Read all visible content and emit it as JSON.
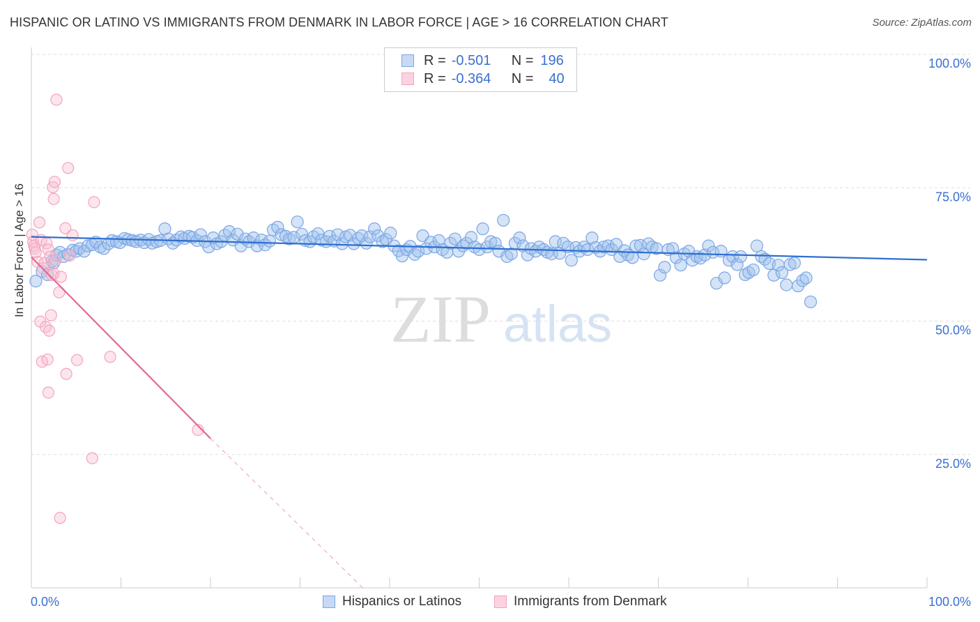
{
  "title": "HISPANIC OR LATINO VS IMMIGRANTS FROM DENMARK IN LABOR FORCE | AGE > 16 CORRELATION CHART",
  "source": "Source: ZipAtlas.com",
  "watermark": {
    "zip": "ZIP",
    "atlas": "atlas"
  },
  "legend": {
    "series1": {
      "r_label": "R =",
      "r_value": "-0.501",
      "n_label": "N =",
      "n_value": "196"
    },
    "series2": {
      "r_label": "R =",
      "r_value": "-0.364",
      "n_label": "N =",
      "n_value": "40"
    }
  },
  "colors": {
    "blue": "#7aa6e6",
    "blue_line": "#2f6fd0",
    "pink": "#f4a3bd",
    "pink_line": "#e06a95",
    "tick_text": "#3a6fd0"
  },
  "chart_data": {
    "type": "scatter",
    "title": "HISPANIC OR LATINO VS IMMIGRANTS FROM DENMARK IN LABOR FORCE | AGE > 16 CORRELATION CHART",
    "xlabel": "",
    "ylabel": "In Labor Force | Age > 16",
    "xlim": [
      0,
      100
    ],
    "ylim": [
      0,
      100
    ],
    "x_ticks": [
      "0.0%",
      "100.0%"
    ],
    "y_ticks": [
      {
        "v": 25,
        "label": "25.0%"
      },
      {
        "v": 50,
        "label": "50.0%"
      },
      {
        "v": 75,
        "label": "75.0%"
      },
      {
        "v": 100,
        "label": "100.0%"
      }
    ],
    "grid": true,
    "legend_position": "bottom-center",
    "series": [
      {
        "name": "Hispanics or Latinos",
        "color": "#7aa6e6",
        "trend": {
          "x0": 0,
          "y0": 65.8,
          "x1": 100,
          "y1": 61.5
        },
        "points": [
          [
            0.5,
            57.5
          ],
          [
            1.2,
            59.3
          ],
          [
            1.8,
            58.7
          ],
          [
            2.3,
            61.2
          ],
          [
            2.5,
            60.9
          ],
          [
            2.8,
            62.4
          ],
          [
            3.2,
            62.9
          ],
          [
            3.6,
            62.1
          ],
          [
            4.1,
            62.5
          ],
          [
            4.6,
            63.3
          ],
          [
            5.0,
            63.1
          ],
          [
            5.4,
            63.6
          ],
          [
            5.9,
            63.1
          ],
          [
            6.3,
            64.1
          ],
          [
            6.8,
            64.3
          ],
          [
            7.2,
            64.8
          ],
          [
            7.7,
            63.9
          ],
          [
            8.1,
            63.6
          ],
          [
            8.6,
            64.5
          ],
          [
            9.0,
            65.1
          ],
          [
            9.5,
            64.9
          ],
          [
            9.9,
            64.7
          ],
          [
            10.4,
            65.5
          ],
          [
            10.8,
            65.3
          ],
          [
            11.3,
            65.1
          ],
          [
            11.7,
            64.9
          ],
          [
            12.2,
            65.2
          ],
          [
            12.6,
            64.7
          ],
          [
            13.1,
            65.3
          ],
          [
            13.5,
            64.6
          ],
          [
            14.0,
            64.9
          ],
          [
            14.4,
            65.1
          ],
          [
            14.9,
            67.3
          ],
          [
            15.3,
            65.4
          ],
          [
            15.8,
            64.6
          ],
          [
            16.2,
            65.2
          ],
          [
            16.7,
            65.8
          ],
          [
            17.1,
            65.5
          ],
          [
            17.6,
            65.9
          ],
          [
            18.0,
            65.7
          ],
          [
            18.5,
            65.1
          ],
          [
            18.9,
            66.2
          ],
          [
            19.4,
            64.9
          ],
          [
            19.8,
            63.9
          ],
          [
            20.3,
            65.6
          ],
          [
            20.7,
            64.5
          ],
          [
            21.2,
            64.9
          ],
          [
            21.6,
            66.1
          ],
          [
            22.1,
            66.8
          ],
          [
            22.5,
            65.2
          ],
          [
            23.0,
            66.3
          ],
          [
            23.4,
            64.1
          ],
          [
            23.9,
            65.4
          ],
          [
            24.3,
            64.9
          ],
          [
            24.8,
            65.6
          ],
          [
            25.2,
            64.1
          ],
          [
            25.7,
            65.2
          ],
          [
            26.1,
            64.3
          ],
          [
            26.6,
            65.0
          ],
          [
            27.0,
            67.1
          ],
          [
            27.5,
            67.6
          ],
          [
            27.9,
            66.2
          ],
          [
            28.4,
            65.9
          ],
          [
            28.8,
            65.4
          ],
          [
            29.3,
            65.7
          ],
          [
            29.7,
            68.6
          ],
          [
            30.2,
            66.3
          ],
          [
            30.6,
            65.1
          ],
          [
            31.1,
            64.9
          ],
          [
            31.5,
            65.8
          ],
          [
            32.0,
            66.4
          ],
          [
            32.4,
            65.2
          ],
          [
            32.9,
            64.9
          ],
          [
            33.3,
            65.9
          ],
          [
            33.8,
            65.0
          ],
          [
            34.2,
            66.2
          ],
          [
            34.7,
            64.5
          ],
          [
            35.1,
            65.8
          ],
          [
            35.6,
            66.1
          ],
          [
            36.0,
            64.5
          ],
          [
            36.5,
            65.5
          ],
          [
            36.9,
            66.0
          ],
          [
            37.4,
            64.6
          ],
          [
            37.8,
            65.8
          ],
          [
            38.3,
            67.3
          ],
          [
            38.7,
            66.0
          ],
          [
            39.2,
            64.9
          ],
          [
            39.6,
            65.3
          ],
          [
            40.1,
            66.5
          ],
          [
            40.5,
            64.1
          ],
          [
            41.0,
            63.2
          ],
          [
            41.4,
            62.2
          ],
          [
            41.9,
            63.4
          ],
          [
            42.3,
            64.0
          ],
          [
            42.8,
            62.5
          ],
          [
            43.2,
            63.1
          ],
          [
            43.7,
            66.0
          ],
          [
            44.1,
            63.6
          ],
          [
            44.6,
            64.8
          ],
          [
            45.0,
            63.9
          ],
          [
            45.5,
            65.1
          ],
          [
            45.9,
            63.4
          ],
          [
            46.4,
            62.9
          ],
          [
            46.8,
            64.6
          ],
          [
            47.3,
            65.4
          ],
          [
            47.7,
            63.1
          ],
          [
            48.2,
            64.1
          ],
          [
            48.6,
            64.6
          ],
          [
            49.1,
            65.7
          ],
          [
            49.5,
            63.9
          ],
          [
            50.0,
            63.4
          ],
          [
            50.4,
            67.3
          ],
          [
            50.9,
            63.9
          ],
          [
            51.3,
            64.9
          ],
          [
            51.8,
            64.6
          ],
          [
            52.2,
            63.1
          ],
          [
            52.7,
            68.9
          ],
          [
            53.1,
            62.1
          ],
          [
            53.6,
            62.6
          ],
          [
            54.0,
            64.6
          ],
          [
            54.5,
            65.6
          ],
          [
            54.9,
            64.1
          ],
          [
            55.4,
            62.4
          ],
          [
            55.8,
            63.6
          ],
          [
            56.3,
            63.1
          ],
          [
            56.7,
            63.9
          ],
          [
            57.2,
            63.4
          ],
          [
            57.6,
            62.9
          ],
          [
            58.1,
            62.6
          ],
          [
            58.5,
            64.9
          ],
          [
            59.0,
            62.7
          ],
          [
            59.4,
            64.6
          ],
          [
            59.9,
            63.9
          ],
          [
            60.3,
            61.4
          ],
          [
            60.8,
            63.8
          ],
          [
            61.2,
            63.1
          ],
          [
            61.7,
            63.9
          ],
          [
            62.1,
            63.4
          ],
          [
            62.6,
            65.6
          ],
          [
            63.0,
            63.8
          ],
          [
            63.5,
            63.1
          ],
          [
            63.9,
            63.9
          ],
          [
            64.4,
            64.1
          ],
          [
            64.8,
            63.4
          ],
          [
            65.3,
            64.4
          ],
          [
            65.7,
            62.1
          ],
          [
            66.2,
            63.2
          ],
          [
            66.6,
            62.4
          ],
          [
            67.1,
            61.9
          ],
          [
            67.5,
            64.1
          ],
          [
            68.0,
            64.2
          ],
          [
            68.4,
            62.6
          ],
          [
            68.9,
            64.5
          ],
          [
            69.3,
            63.9
          ],
          [
            69.8,
            63.6
          ],
          [
            70.2,
            58.6
          ],
          [
            70.7,
            60.1
          ],
          [
            71.1,
            63.4
          ],
          [
            71.6,
            63.6
          ],
          [
            72.0,
            61.9
          ],
          [
            72.5,
            60.5
          ],
          [
            72.9,
            62.6
          ],
          [
            73.4,
            63.1
          ],
          [
            73.8,
            61.4
          ],
          [
            74.3,
            62.1
          ],
          [
            74.7,
            61.8
          ],
          [
            75.2,
            62.4
          ],
          [
            75.6,
            64.1
          ],
          [
            76.1,
            62.9
          ],
          [
            76.5,
            57.1
          ],
          [
            77.0,
            63.1
          ],
          [
            77.4,
            58.1
          ],
          [
            77.9,
            61.4
          ],
          [
            78.3,
            62.1
          ],
          [
            78.8,
            60.6
          ],
          [
            79.2,
            62.1
          ],
          [
            79.7,
            58.7
          ],
          [
            80.1,
            59.1
          ],
          [
            80.6,
            59.6
          ],
          [
            81.0,
            64.1
          ],
          [
            81.5,
            62.1
          ],
          [
            81.9,
            61.6
          ],
          [
            82.4,
            60.8
          ],
          [
            82.9,
            58.6
          ],
          [
            83.4,
            60.5
          ],
          [
            83.8,
            59.1
          ],
          [
            84.3,
            56.8
          ],
          [
            84.7,
            60.6
          ],
          [
            85.2,
            60.9
          ],
          [
            85.6,
            56.6
          ],
          [
            86.1,
            57.6
          ],
          [
            86.5,
            58.1
          ],
          [
            87.0,
            53.6
          ]
        ]
      },
      {
        "name": "Immigrants from Denmark",
        "color": "#f4a3bd",
        "trend": {
          "x0": 0,
          "y0": 62.0,
          "x1": 20,
          "y1": 28.0,
          "dash_x1": 37,
          "dash_y1": 0
        },
        "points": [
          [
            0.1,
            66.2
          ],
          [
            0.2,
            64.9
          ],
          [
            0.3,
            64.1
          ],
          [
            0.4,
            63.6
          ],
          [
            0.5,
            62.9
          ],
          [
            0.7,
            61.1
          ],
          [
            0.9,
            68.5
          ],
          [
            1.1,
            65.2
          ],
          [
            1.3,
            59.9
          ],
          [
            1.5,
            60.9
          ],
          [
            1.7,
            64.6
          ],
          [
            1.9,
            63.4
          ],
          [
            2.1,
            62.1
          ],
          [
            2.3,
            58.6
          ],
          [
            2.5,
            58.9
          ],
          [
            2.7,
            61.4
          ],
          [
            1.0,
            49.9
          ],
          [
            1.6,
            48.9
          ],
          [
            2.0,
            48.2
          ],
          [
            2.2,
            51.1
          ],
          [
            1.2,
            42.4
          ],
          [
            1.8,
            42.8
          ],
          [
            1.9,
            36.6
          ],
          [
            2.4,
            75.1
          ],
          [
            2.5,
            72.9
          ],
          [
            2.6,
            76.1
          ],
          [
            2.8,
            91.5
          ],
          [
            3.1,
            55.4
          ],
          [
            3.3,
            58.3
          ],
          [
            3.8,
            67.4
          ],
          [
            4.1,
            78.7
          ],
          [
            4.3,
            62.3
          ],
          [
            4.6,
            66.1
          ],
          [
            5.1,
            42.7
          ],
          [
            3.9,
            40.1
          ],
          [
            7.0,
            72.3
          ],
          [
            8.8,
            43.3
          ],
          [
            6.8,
            24.3
          ],
          [
            3.2,
            13.1
          ],
          [
            18.6,
            29.6
          ]
        ]
      }
    ]
  },
  "bottom_legend": {
    "item1": "Hispanics or Latinos",
    "item2": "Immigrants from Denmark"
  }
}
